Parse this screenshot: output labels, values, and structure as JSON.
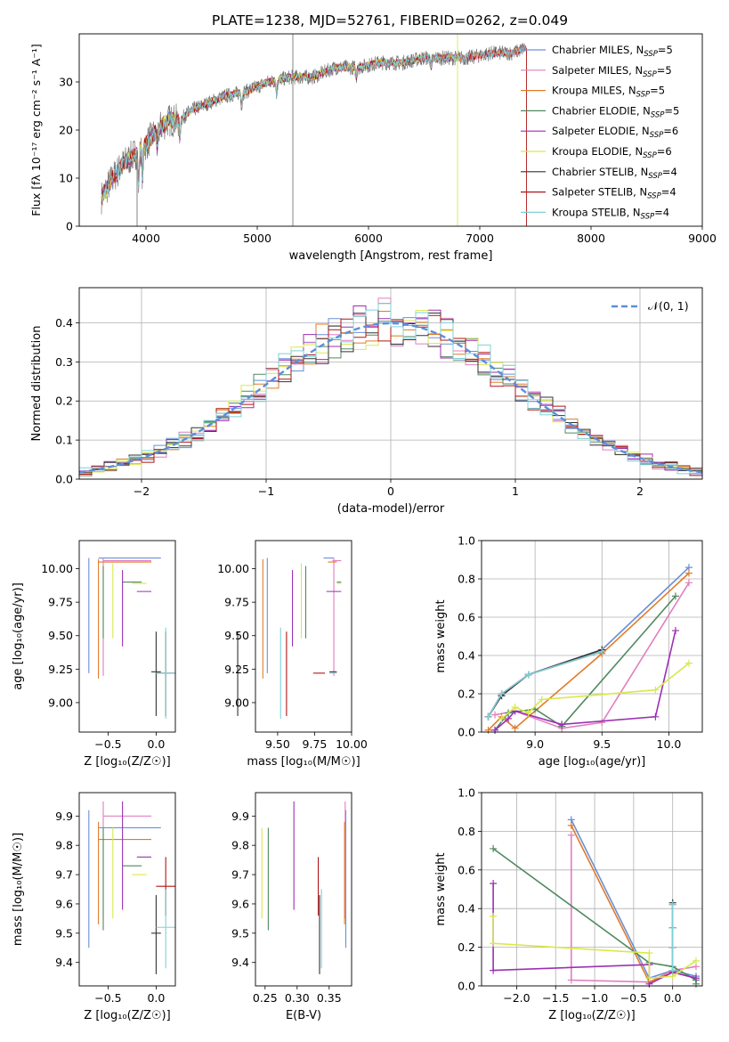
{
  "figure_title": "PLATE=1238, MJD=52761, FIBERID=0262, z=0.049",
  "colors": [
    "#6a8fd9",
    "#e07fbf",
    "#e07b2a",
    "#4f8a5f",
    "#9b2fb3",
    "#d9e84a",
    "#333333",
    "#b01515",
    "#7fd0d8"
  ],
  "legend_labels": [
    "Chabrier MILES, N_SSP=5",
    "Salpeter MILES, N_SSP=5",
    "Kroupa MILES, N_SSP=5",
    "Chabrier ELODIE, N_SSP=5",
    "Salpeter ELODIE, N_SSP=6",
    "Kroupa ELODIE, N_SSP=6",
    "Chabrier STELIB, N_SSP=4",
    "Salpeter STELIB, N_SSP=4",
    "Kroupa STELIB, N_SSP=4"
  ],
  "chart_data": [
    {
      "id": "spectrum",
      "type": "line",
      "xlabel": "wavelength [Angstrom, rest frame]",
      "ylabel": "Flux [f_λ 10^-17 erg cm^-2 s^-1 A^-1]",
      "xlim": [
        3400,
        9000
      ],
      "ylim": [
        0,
        40
      ],
      "xticks": [
        4000,
        5000,
        6000,
        7000,
        8000,
        9000
      ],
      "yticks": [
        0,
        10,
        20,
        30
      ],
      "legend": "upper right",
      "continuum": {
        "x": [
          3600,
          3700,
          3800,
          3900,
          4000,
          4100,
          4200,
          4300,
          4400,
          4500,
          4700,
          4900,
          5100,
          5300,
          5500,
          5700,
          5900,
          6100,
          6300,
          6500,
          6700,
          6900,
          7100,
          7300,
          7400
        ],
        "y": [
          6,
          10,
          13,
          15,
          17,
          20,
          22,
          22,
          24,
          25,
          27,
          28,
          30,
          31,
          31,
          33,
          33,
          34,
          34,
          35,
          35,
          35,
          36,
          36,
          37
        ]
      },
      "extents": {
        "data": [
          3600,
          7420
        ],
        "Chabrier MILES, N_SSP=5": [
          3600,
          7400
        ],
        "Salpeter MILES, N_SSP=5": [
          3600,
          7400
        ],
        "Kroupa MILES, N_SSP=5": [
          3600,
          7400
        ],
        "Chabrier ELODIE, N_SSP=5": [
          3600,
          6800
        ],
        "Salpeter ELODIE, N_SSP=6": [
          3600,
          6800
        ],
        "Kroupa ELODIE, N_SSP=6": [
          3600,
          6800
        ],
        "Chabrier STELIB, N_SSP=4": [
          3600,
          7400
        ],
        "Salpeter STELIB, N_SSP=4": [
          3600,
          7400
        ],
        "Kroupa STELIB, N_SSP=4": [
          3600,
          7400
        ]
      },
      "spikes": [
        {
          "x": 3920,
          "y0": 0,
          "y1": 16
        },
        {
          "x": 5320,
          "y0": 0,
          "y1": 40
        },
        {
          "x": 6800,
          "y0": 0,
          "y1": 40
        },
        {
          "x": 7420,
          "y0": 0,
          "y1": 37
        }
      ]
    },
    {
      "id": "residuals",
      "type": "line",
      "xlabel": "(data-model)/error",
      "ylabel": "Normed distribution",
      "xlim": [
        -2.5,
        2.5
      ],
      "ylim": [
        0,
        0.49
      ],
      "xticks": [
        -2,
        -1,
        0,
        1,
        2
      ],
      "yticks": [
        0.0,
        0.1,
        0.2,
        0.3,
        0.4
      ],
      "grid": true,
      "reference": {
        "name": "𝒩(0, 1)",
        "mean": 0,
        "sigma": 1
      },
      "bin_width": 0.1
    },
    {
      "id": "age-vs-Z",
      "type": "scatter",
      "xlabel": "Z [log₁₀(Z/Z☉)]",
      "ylabel": "age  [log₁₀(age/yr)]",
      "xlim": [
        -0.8,
        0.2
      ],
      "ylim": [
        8.78,
        10.21
      ],
      "xticks": [
        -0.5,
        0.0
      ],
      "yticks": [
        9.0,
        9.25,
        9.5,
        9.75,
        10.0
      ],
      "grid": false
    },
    {
      "id": "age-vs-mass",
      "type": "scatter",
      "xlabel": "mass [log₁₀(M/M☉)]",
      "ylabel": "",
      "xlim": [
        9.35,
        10.0
      ],
      "ylim": [
        8.78,
        10.21
      ],
      "xticks": [
        9.5,
        9.75,
        10.0
      ],
      "yticks": [
        9.0,
        9.25,
        9.5,
        9.75,
        10.0
      ],
      "grid": false
    },
    {
      "id": "weight-vs-age",
      "type": "line",
      "xlabel": "age  [log₁₀(age/yr)]",
      "ylabel": "mass weight",
      "xlim": [
        8.6,
        10.25
      ],
      "ylim": [
        0,
        1
      ],
      "xticks": [
        9.0,
        9.5,
        10.0
      ],
      "yticks": [
        0.0,
        0.2,
        0.4,
        0.6,
        0.8,
        1.0
      ],
      "grid": true,
      "series": [
        {
          "name": "Chabrier MILES, N_SSP=5",
          "x": [
            8.65,
            8.75,
            8.95,
            9.5,
            10.15
          ],
          "y": [
            0.08,
            0.19,
            0.3,
            0.43,
            0.86
          ]
        },
        {
          "name": "Salpeter MILES, N_SSP=5",
          "x": [
            8.7,
            8.85,
            9.2,
            9.5,
            10.15
          ],
          "y": [
            0.09,
            0.11,
            0.02,
            0.05,
            0.78
          ]
        },
        {
          "name": "Kroupa MILES, N_SSP=5",
          "x": [
            8.65,
            8.75,
            8.85,
            9.5,
            10.15
          ],
          "y": [
            0.01,
            0.08,
            0.02,
            0.41,
            0.83
          ]
        },
        {
          "name": "Chabrier ELODIE, N_SSP=5",
          "x": [
            8.7,
            8.8,
            9.0,
            9.2,
            10.05
          ],
          "y": [
            0.01,
            0.1,
            0.12,
            0.03,
            0.71
          ]
        },
        {
          "name": "Salpeter ELODIE, N_SSP=6",
          "x": [
            8.7,
            8.8,
            8.85,
            9.2,
            9.9,
            10.05
          ],
          "y": [
            0.01,
            0.07,
            0.11,
            0.04,
            0.08,
            0.53
          ]
        },
        {
          "name": "Kroupa ELODIE, N_SSP=6",
          "x": [
            8.75,
            8.85,
            8.95,
            9.05,
            9.9,
            10.15
          ],
          "y": [
            0.07,
            0.13,
            0.1,
            0.17,
            0.22,
            0.36
          ]
        },
        {
          "name": "Chabrier STELIB, N_SSP=4",
          "x": [
            8.65,
            8.75,
            8.95,
            9.5
          ],
          "y": [
            0.08,
            0.19,
            0.3,
            0.43
          ]
        },
        {
          "name": "Salpeter STELIB, N_SSP=4",
          "x": [
            8.65,
            8.75,
            8.95,
            9.5
          ],
          "y": [
            0.08,
            0.2,
            0.3,
            0.42
          ]
        },
        {
          "name": "Kroupa STELIB, N_SSP=4",
          "x": [
            8.65,
            8.75,
            8.95,
            9.5
          ],
          "y": [
            0.08,
            0.2,
            0.3,
            0.42
          ]
        }
      ]
    },
    {
      "id": "mass-vs-Z",
      "type": "scatter",
      "xlabel": "Z [log₁₀(Z/Z☉)]",
      "ylabel": "mass [log₁₀(M/M☉)]",
      "xlim": [
        -0.8,
        0.2
      ],
      "ylim": [
        9.32,
        9.98
      ],
      "xticks": [
        -0.5,
        0.0
      ],
      "yticks": [
        9.4,
        9.5,
        9.6,
        9.7,
        9.8,
        9.9
      ],
      "grid": false
    },
    {
      "id": "mass-vs-EBV",
      "type": "scatter",
      "xlabel": "E(B-V)",
      "ylabel": "",
      "xlim": [
        0.235,
        0.385
      ],
      "ylim": [
        9.32,
        9.98
      ],
      "xticks": [
        0.25,
        0.3,
        0.35
      ],
      "yticks": [
        9.4,
        9.5,
        9.6,
        9.7,
        9.8,
        9.9
      ],
      "grid": false
    },
    {
      "id": "weight-vs-Z",
      "type": "line",
      "xlabel": "Z [log₁₀(Z/Z☉)]",
      "ylabel": "mass weight",
      "xlim": [
        -2.45,
        0.38
      ],
      "ylim": [
        0,
        1
      ],
      "xticks": [
        -2.0,
        -1.5,
        -1.0,
        -0.5,
        0.0
      ],
      "yticks": [
        0.0,
        0.2,
        0.4,
        0.6,
        0.8,
        1.0
      ],
      "grid": true,
      "series": [
        {
          "name": "Chabrier MILES, N_SSP=5",
          "x": [
            -1.3,
            -0.3,
            0.0,
            0.3
          ],
          "y": [
            0.86,
            0.04,
            0.08,
            0.05
          ]
        },
        {
          "name": "Salpeter MILES, N_SSP=5",
          "x": [
            -1.3,
            -1.3,
            -0.3,
            0.0,
            0.3
          ],
          "y": [
            0.78,
            0.03,
            0.02,
            0.08,
            0.1
          ]
        },
        {
          "name": "Kroupa MILES, N_SSP=5",
          "x": [
            -1.3,
            -0.3,
            0.0,
            0.3
          ],
          "y": [
            0.83,
            0.02,
            0.07,
            0.04
          ]
        },
        {
          "name": "Chabrier ELODIE, N_SSP=5",
          "x": [
            -2.3,
            -0.3,
            0.0,
            0.3,
            0.3
          ],
          "y": [
            0.71,
            0.12,
            0.1,
            0.03,
            0.01
          ]
        },
        {
          "name": "Salpeter ELODIE, N_SSP=6",
          "x": [
            -2.3,
            -2.3,
            -0.3,
            -0.3,
            0.0,
            0.3
          ],
          "y": [
            0.53,
            0.08,
            0.11,
            0.01,
            0.07,
            0.04
          ]
        },
        {
          "name": "Kroupa ELODIE, N_SSP=6",
          "x": [
            -2.3,
            -2.3,
            -0.3,
            -0.3,
            0.0,
            0.3
          ],
          "y": [
            0.36,
            0.22,
            0.17,
            0.04,
            0.05,
            0.13
          ]
        },
        {
          "name": "Chabrier STELIB, N_SSP=4",
          "x": [
            0.0,
            0.0,
            0.0,
            0.0
          ],
          "y": [
            0.43,
            0.3,
            0.2,
            0.08
          ]
        },
        {
          "name": "Salpeter STELIB, N_SSP=4",
          "x": [
            0.0,
            0.0,
            0.0,
            0.0
          ],
          "y": [
            0.42,
            0.3,
            0.2,
            0.08
          ]
        },
        {
          "name": "Kroupa STELIB, N_SSP=4",
          "x": [
            0.0,
            0.0,
            0.0,
            0.0
          ],
          "y": [
            0.42,
            0.3,
            0.2,
            0.08
          ]
        }
      ]
    }
  ],
  "crosshairs": [
    {
      "name": "Chabrier MILES, N_SSP=5",
      "Z": [
        -0.7,
        -0.6,
        0.05
      ],
      "age": [
        10.08,
        9.22,
        10.08
      ],
      "mass": [
        9.43,
        9.81,
        9.88
      ],
      "mass_for_Z": [
        9.86,
        9.45,
        9.92
      ],
      "ebv": 0.376
    },
    {
      "name": "Salpeter MILES, N_SSP=5",
      "Z": [
        -0.55,
        -0.55,
        -0.05
      ],
      "age": [
        10.06,
        9.2,
        10.08
      ],
      "mass": [
        9.88,
        9.87,
        9.93
      ],
      "mass_for_Z": [
        9.9,
        9.55,
        9.95
      ],
      "ebv": 0.375
    },
    {
      "name": "Kroupa MILES, N_SSP=5",
      "Z": [
        -0.6,
        -0.6,
        -0.05
      ],
      "age": [
        10.05,
        9.18,
        10.07
      ],
      "mass": [
        9.4,
        9.84,
        9.9
      ],
      "mass_for_Z": [
        9.82,
        9.53,
        9.88
      ],
      "ebv": 0.374
    },
    {
      "name": "Chabrier ELODIE, N_SSP=5",
      "Z": [
        -0.55,
        -0.35,
        -0.15
      ],
      "age": [
        9.9,
        9.48,
        10.02
      ],
      "mass": [
        9.69,
        9.9,
        9.93
      ],
      "mass_for_Z": [
        9.73,
        9.51,
        9.86
      ],
      "ebv": 0.255
    },
    {
      "name": "Salpeter ELODIE, N_SSP=6",
      "Z": [
        -0.35,
        -0.2,
        -0.05
      ],
      "age": [
        9.83,
        9.42,
        9.99
      ],
      "mass": [
        9.6,
        9.83,
        9.93
      ],
      "mass_for_Z": [
        9.76,
        9.58,
        9.95
      ],
      "ebv": 0.295
    },
    {
      "name": "Kroupa ELODIE, N_SSP=6",
      "Z": [
        -0.45,
        -0.25,
        -0.1
      ],
      "age": [
        9.89,
        9.48,
        10.04
      ],
      "mass": [
        9.66,
        9.9,
        9.93
      ],
      "mass_for_Z": [
        9.7,
        9.55,
        9.86
      ],
      "ebv": 0.245
    },
    {
      "name": "Chabrier STELIB, N_SSP=4",
      "Z": [
        0.0,
        -0.05,
        0.05
      ],
      "age": [
        9.23,
        8.9,
        9.53
      ],
      "mass": [
        9.23,
        9.85,
        9.9
      ],
      "mass_for_Z": [
        9.5,
        9.36,
        9.63
      ],
      "ebv": 0.335
    },
    {
      "name": "Salpeter STELIB, N_SSP=4",
      "Z": [
        0.1,
        0.0,
        0.2
      ],
      "age": [
        9.22,
        8.9,
        9.53
      ],
      "mass": [
        9.56,
        9.74,
        9.82
      ],
      "mass_for_Z": [
        9.66,
        9.56,
        9.76
      ],
      "ebv": 0.333
    },
    {
      "name": "Kroupa STELIB, N_SSP=4",
      "Z": [
        0.1,
        0.0,
        0.2
      ],
      "age": [
        9.22,
        8.88,
        9.56
      ],
      "mass": [
        9.52,
        9.85,
        9.9
      ],
      "mass_for_Z": [
        9.52,
        9.38,
        9.65
      ],
      "ebv": 0.338
    }
  ]
}
